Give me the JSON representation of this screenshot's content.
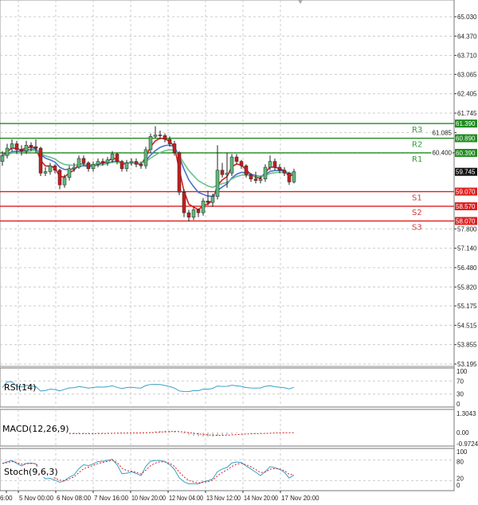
{
  "chart_data": {
    "type": "candlestick",
    "price_axis": {
      "ticks": [
        "65.030",
        "64.370",
        "63.710",
        "63.065",
        "62.405",
        "61.745",
        "61.085",
        "60.400",
        "57.800",
        "57.140",
        "56.480",
        "55.820",
        "55.175",
        "54.515",
        "53.855",
        "53.195"
      ],
      "range": [
        53.195,
        65.03
      ],
      "current": "59.745"
    },
    "time_axis": {
      "ticks": [
        "6:00",
        "5 Nov 00:00",
        "6 Nov 08:00",
        "7 Nov 16:00",
        "10 Nov 20:00",
        "12 Nov 04:00",
        "13 Nov 12:00",
        "14 Nov 20:00",
        "17 Nov 20:00"
      ]
    },
    "levels": [
      {
        "name": "R3",
        "value": 61.39,
        "label": "61.390",
        "color": "#1f8c1f"
      },
      {
        "name": "R2",
        "value": 60.89,
        "label": "60.890",
        "color": "#1f8c1f"
      },
      {
        "name": "R1",
        "value": 60.39,
        "label": "60.390",
        "color": "#1f8c1f"
      },
      {
        "name": "S1",
        "value": 59.07,
        "label": "59.070",
        "color": "#dd1f1f"
      },
      {
        "name": "S2",
        "value": 58.57,
        "label": "58.570",
        "color": "#dd1f1f"
      },
      {
        "name": "S3",
        "value": 58.07,
        "label": "58.070",
        "color": "#dd1f1f"
      }
    ],
    "open": [
      60.1,
      60.3,
      60.55,
      60.7,
      60.5,
      60.45,
      60.65,
      60.6,
      60.55,
      59.7,
      59.75,
      59.95,
      59.8,
      59.3,
      59.55,
      59.85,
      59.9,
      60.2,
      60.05,
      59.85,
      60.0,
      60.1,
      60.05,
      60.15,
      60.35,
      60.1,
      59.85,
      60.05,
      60.1,
      60.0,
      59.95,
      60.5,
      60.95,
      61.0,
      60.98,
      60.85,
      60.7,
      60.4,
      59.05,
      58.35,
      58.2,
      58.45,
      58.35,
      58.75,
      58.7,
      58.9,
      59.8,
      59.65,
      59.7,
      60.25,
      60.1,
      59.95,
      59.65,
      59.5,
      59.45,
      59.5,
      59.9,
      60.1,
      59.9,
      59.8,
      59.7,
      59.4
    ],
    "high": [
      60.45,
      60.7,
      60.85,
      60.8,
      60.65,
      60.8,
      60.75,
      60.85,
      60.6,
      59.9,
      60.05,
      60.0,
      59.85,
      59.65,
      59.95,
      60.05,
      60.3,
      60.3,
      60.1,
      60.1,
      60.2,
      60.2,
      60.25,
      60.45,
      60.4,
      60.15,
      60.15,
      60.2,
      60.2,
      60.1,
      60.6,
      61.05,
      61.3,
      61.15,
      61.05,
      60.95,
      60.8,
      60.45,
      59.15,
      58.45,
      58.55,
      58.5,
      58.85,
      59.1,
      59.0,
      60.65,
      60.05,
      60.4,
      60.35,
      60.35,
      60.15,
      60.0,
      59.7,
      59.75,
      59.6,
      60.0,
      60.3,
      60.2,
      60.0,
      59.9,
      59.75,
      59.85
    ],
    "low": [
      59.95,
      60.2,
      60.45,
      60.35,
      60.3,
      60.35,
      60.45,
      60.4,
      59.6,
      59.6,
      59.65,
      59.7,
      59.15,
      59.2,
      59.45,
      59.75,
      59.85,
      59.95,
      59.75,
      59.75,
      59.9,
      59.95,
      59.95,
      60.05,
      60.0,
      59.75,
      59.75,
      59.95,
      59.9,
      59.85,
      59.85,
      60.4,
      60.9,
      60.85,
      60.75,
      60.6,
      60.3,
      58.95,
      58.2,
      58.05,
      58.1,
      58.2,
      58.25,
      58.6,
      58.55,
      58.8,
      59.55,
      59.2,
      59.6,
      60.0,
      59.85,
      59.55,
      59.4,
      59.35,
      59.35,
      59.4,
      59.8,
      59.8,
      59.7,
      59.6,
      59.3,
      59.35
    ],
    "close": [
      60.3,
      60.55,
      60.7,
      60.5,
      60.45,
      60.65,
      60.6,
      60.55,
      59.7,
      59.75,
      59.95,
      59.8,
      59.3,
      59.55,
      59.85,
      59.9,
      60.2,
      60.05,
      59.85,
      60.0,
      60.1,
      60.05,
      60.15,
      60.35,
      60.1,
      59.85,
      60.05,
      60.1,
      60.0,
      59.95,
      60.5,
      60.95,
      61.0,
      60.98,
      60.85,
      60.7,
      60.4,
      59.05,
      58.35,
      58.2,
      58.45,
      58.35,
      58.75,
      58.7,
      58.9,
      59.8,
      59.65,
      59.7,
      60.25,
      60.1,
      59.95,
      59.65,
      59.5,
      59.45,
      59.5,
      59.9,
      60.1,
      59.9,
      59.8,
      59.7,
      59.4,
      59.75
    ],
    "colors": {
      "up": "#5fb87a",
      "down": "#c41e1e",
      "ma_fast": "#d42020",
      "ma_mid": "#4a6fd0",
      "ma_slow": "#6cc08a",
      "osc": "#3aa0c8",
      "signal": "#d42020"
    },
    "indicators": [
      {
        "name": "RSI(14)",
        "ticks": [
          "100",
          "70",
          "30",
          "0"
        ]
      },
      {
        "name": "MACD(12,26,9)",
        "ticks": [
          "1.3043",
          "0.00",
          "-0.9724"
        ]
      },
      {
        "name": "Stoch(9,6,3)",
        "ticks": [
          "100",
          "80",
          "20",
          "0"
        ]
      }
    ]
  }
}
